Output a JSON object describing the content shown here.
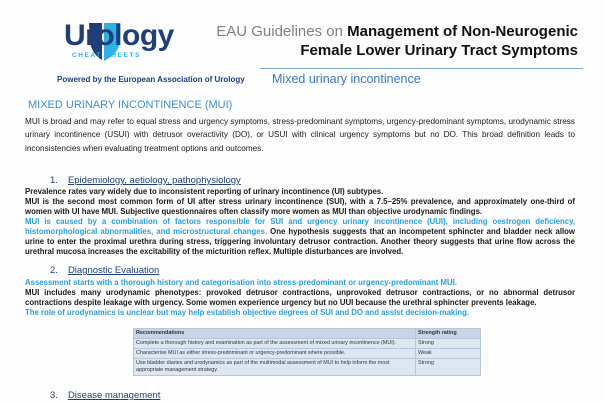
{
  "header": {
    "logo_text": "Urology",
    "logo_subtext": "CHEAT SHEETS",
    "powered_by": "Powered by the European Association of Urology",
    "title_prefix": "EAU Guidelines on ",
    "title_line1": "Management of  Non-Neurogenic",
    "title_line2": "Female Lower Urinary Tract Symptoms",
    "subtitle": "Mixed urinary incontinence"
  },
  "colors": {
    "brand_dark": "#1e3f7a",
    "brand_light": "#2cb3e6",
    "highlight_text": "#2aa0dc"
  },
  "intro": {
    "heading": "MIXED URINARY INCONTINENCE (MUI)",
    "text": "MUI is broad and may refer to equal stress and urgency symptoms, stress-predominant symptoms, urgency-predominant symptoms, urodynamic stress urinary incontinence (USUI) with detrusor overactivity (DO), or USUI with clinical urgency symptoms but no DO. This broad definition leads to inconsistencies when evaluating treatment options and outcomes."
  },
  "sections": [
    {
      "number": "1.",
      "title": "Epidemiology, aetiology, pathophysiology",
      "p1": "Prevalence rates vary widely due to inconsistent reporting of urinary incontinence (UI) subtypes.",
      "p2": "MUI is the second most common form of UI after stress urinary incontinence (SUI), with a 7.5–25% prevalence, and approximately one-third of women with UI have MUI. Subjective questionnaires often classify more women as MUI than objective urodynamic findings.",
      "p3_highlight": "MUI is caused by a combination of factors responsible for SUI and urgency urinary incontinence (UUI), including oestrogen deficiency, histomorphological abnormalities, and microstructural changes.",
      "p3_rest": " One hypothesis suggests that an incompetent sphincter and bladder neck allow urine to enter the proximal urethra during stress, triggering involuntary detrusor contraction. Another theory suggests that urine flow across the urethral mucosa increases the excitability of the micturition reflex. Multiple disturbances are involved."
    },
    {
      "number": "2.",
      "title": "Diagnostic Evaluation",
      "p1": "Assessment starts with a thorough history and categorisation into stress-predominant or urgency-predominant MUI.",
      "p2": "MUI includes many urodynamic phenotypes: provoked detrusor contractions, unprovoked detrusor contractions, or no abnormal detrusor contractions despite leakage with urgency. Some women experience urgency but no UUI because the urethral sphincter prevents leakage.",
      "p3": "The role of urodynamics is unclear but may help establish objective degrees of SUI and DO and assist decision-making."
    },
    {
      "number": "3.",
      "title": "Disease management"
    }
  ],
  "recommendations": {
    "headers": [
      "Recommendations",
      "Strength rating"
    ],
    "rows": [
      {
        "text": "Complete a thorough history and examination as part of the assessment of mixed urinary incontinence (MUI).",
        "rating": "Strong"
      },
      {
        "text": "Characterise MUI as either stress-predominant or urgency-predominant where possible.",
        "rating": "Weak"
      },
      {
        "text": "Use bladder diaries and urodynamics as part of the multimodal assessment of MUI to help inform the most appropriate management strategy.",
        "rating": "Strong"
      }
    ]
  }
}
